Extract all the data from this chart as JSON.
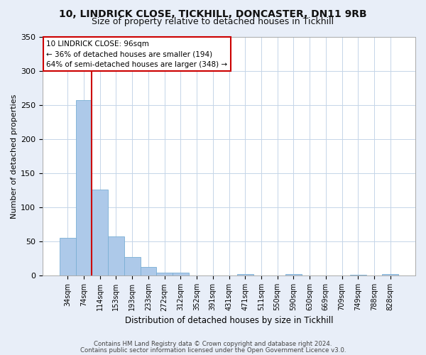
{
  "title1": "10, LINDRICK CLOSE, TICKHILL, DONCASTER, DN11 9RB",
  "title2": "Size of property relative to detached houses in Tickhill",
  "xlabel": "Distribution of detached houses by size in Tickhill",
  "ylabel": "Number of detached properties",
  "bar_labels": [
    "34sqm",
    "74sqm",
    "114sqm",
    "153sqm",
    "193sqm",
    "233sqm",
    "272sqm",
    "312sqm",
    "352sqm",
    "391sqm",
    "431sqm",
    "471sqm",
    "511sqm",
    "550sqm",
    "590sqm",
    "630sqm",
    "669sqm",
    "709sqm",
    "749sqm",
    "788sqm",
    "828sqm"
  ],
  "bar_values": [
    55,
    257,
    126,
    58,
    27,
    13,
    5,
    5,
    0,
    0,
    0,
    2,
    0,
    0,
    2,
    0,
    0,
    0,
    1,
    0,
    2
  ],
  "bar_color": "#adc9e9",
  "bar_edge_color": "#7aafd4",
  "vline_color": "#cc0000",
  "ylim": [
    0,
    350
  ],
  "yticks": [
    0,
    50,
    100,
    150,
    200,
    250,
    300,
    350
  ],
  "annotation_title": "10 LINDRICK CLOSE: 96sqm",
  "annotation_line1": "← 36% of detached houses are smaller (194)",
  "annotation_line2": "64% of semi-detached houses are larger (348) →",
  "annotation_box_color": "#ffffff",
  "annotation_box_edge": "#cc0000",
  "footer1": "Contains HM Land Registry data © Crown copyright and database right 2024.",
  "footer2": "Contains public sector information licensed under the Open Government Licence v3.0.",
  "bg_color": "#e8eef8",
  "plot_bg_color": "#ffffff",
  "grid_color": "#c5d5e8",
  "title_fontsize": 10,
  "subtitle_fontsize": 9
}
